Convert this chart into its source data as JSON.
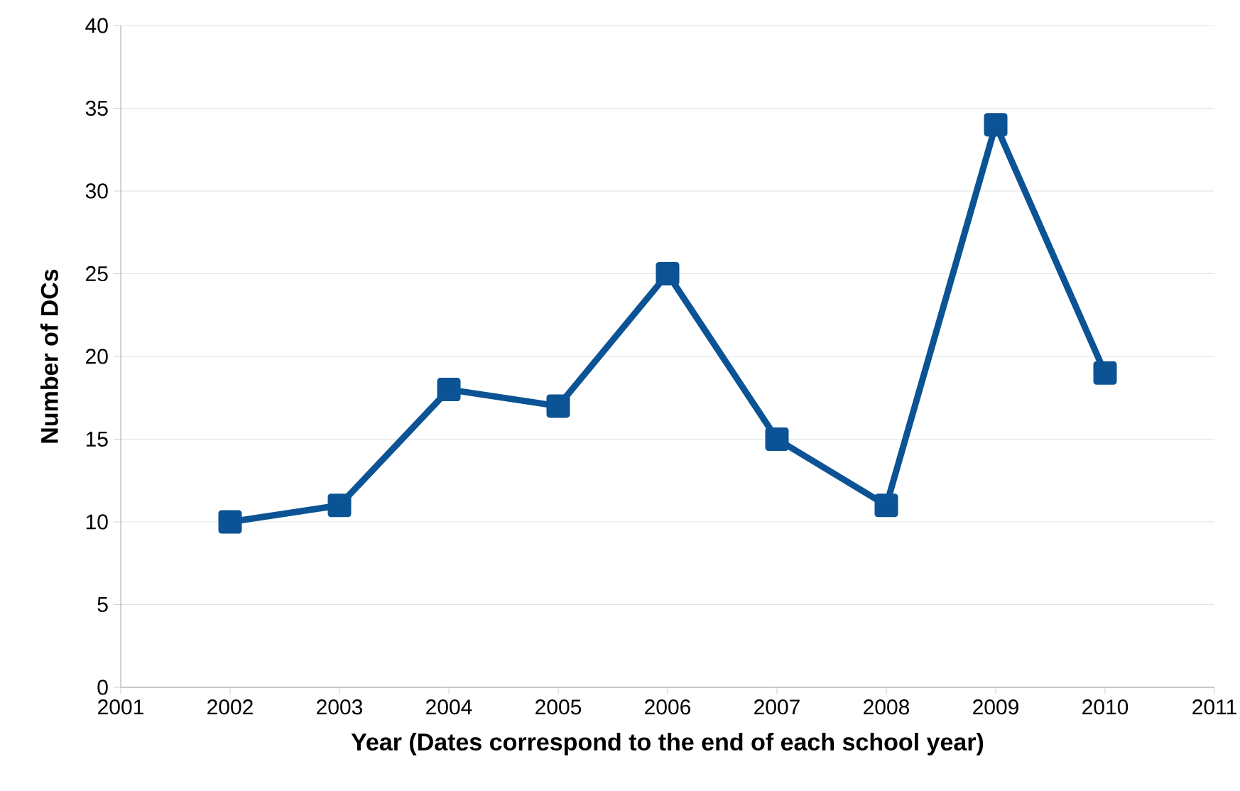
{
  "chart_data": {
    "type": "line",
    "xlabel": "Year (Dates correspond to the end of each school year)",
    "ylabel": "Number of DCs",
    "x": [
      2002,
      2003,
      2004,
      2005,
      2006,
      2007,
      2008,
      2009,
      2010
    ],
    "series": [
      {
        "color": "#0b5394",
        "values": [
          10,
          11,
          18,
          17,
          25,
          15,
          11,
          34,
          19
        ]
      }
    ],
    "xlim": [
      2001,
      2011
    ],
    "xticks": [
      2001,
      2002,
      2003,
      2004,
      2005,
      2006,
      2007,
      2008,
      2009,
      2010,
      2011
    ],
    "ylim": [
      0,
      40
    ],
    "yticks": [
      0,
      5,
      10,
      15,
      20,
      25,
      30,
      35,
      40
    ],
    "grid": "y",
    "marker": "square",
    "line_style": "solid"
  }
}
